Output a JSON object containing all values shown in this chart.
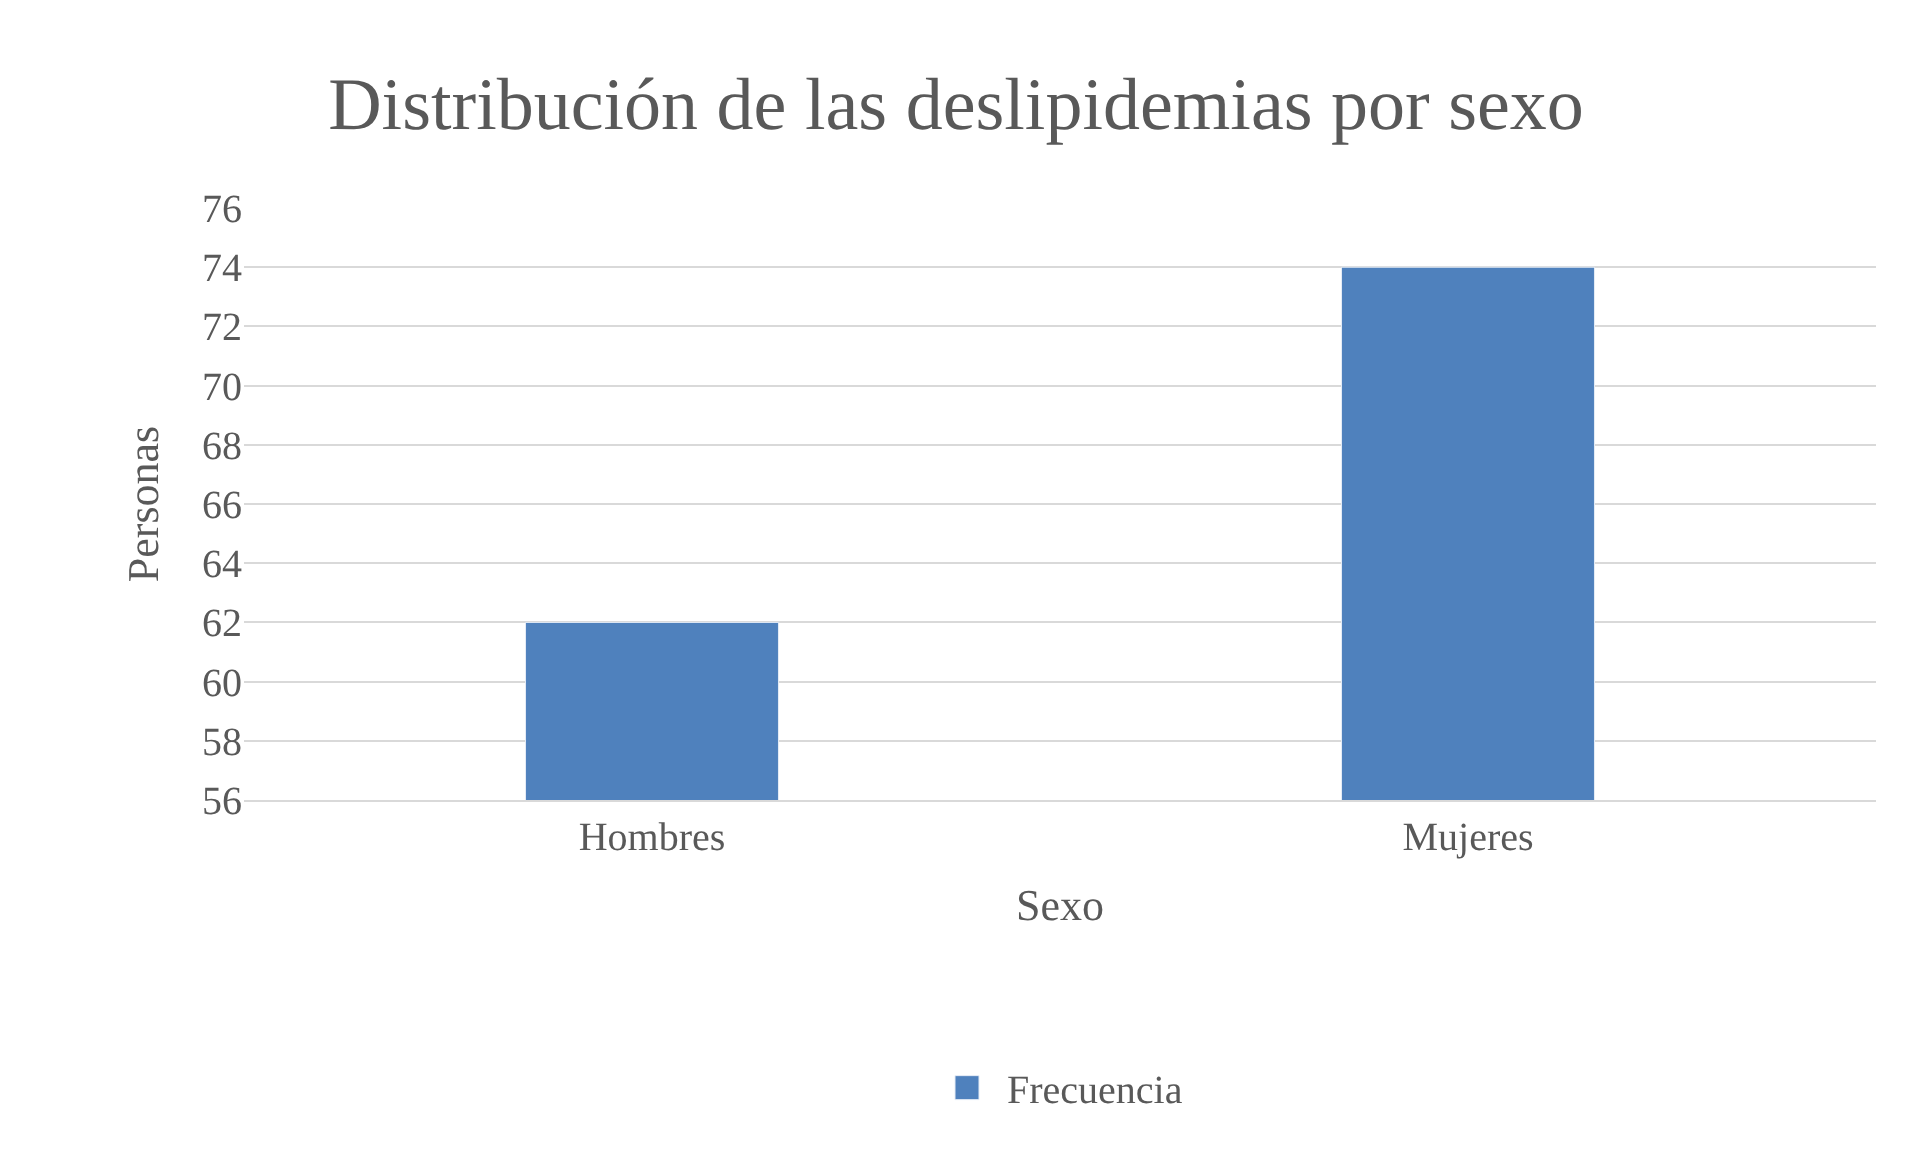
{
  "chart_data": {
    "type": "bar",
    "title": "Distribución de las deslipidemias por sexo",
    "xlabel": "Sexo",
    "ylabel": "Personas",
    "categories": [
      "Hombres",
      "Mujeres"
    ],
    "series": [
      {
        "name": "Frecuencia",
        "color": "#4f81bd",
        "values": [
          62,
          74
        ]
      }
    ],
    "ylim": [
      56,
      76
    ],
    "yticks": [
      56,
      58,
      60,
      62,
      64,
      66,
      68,
      70,
      72,
      74,
      76
    ],
    "grid": "y",
    "legend": "bottom"
  }
}
